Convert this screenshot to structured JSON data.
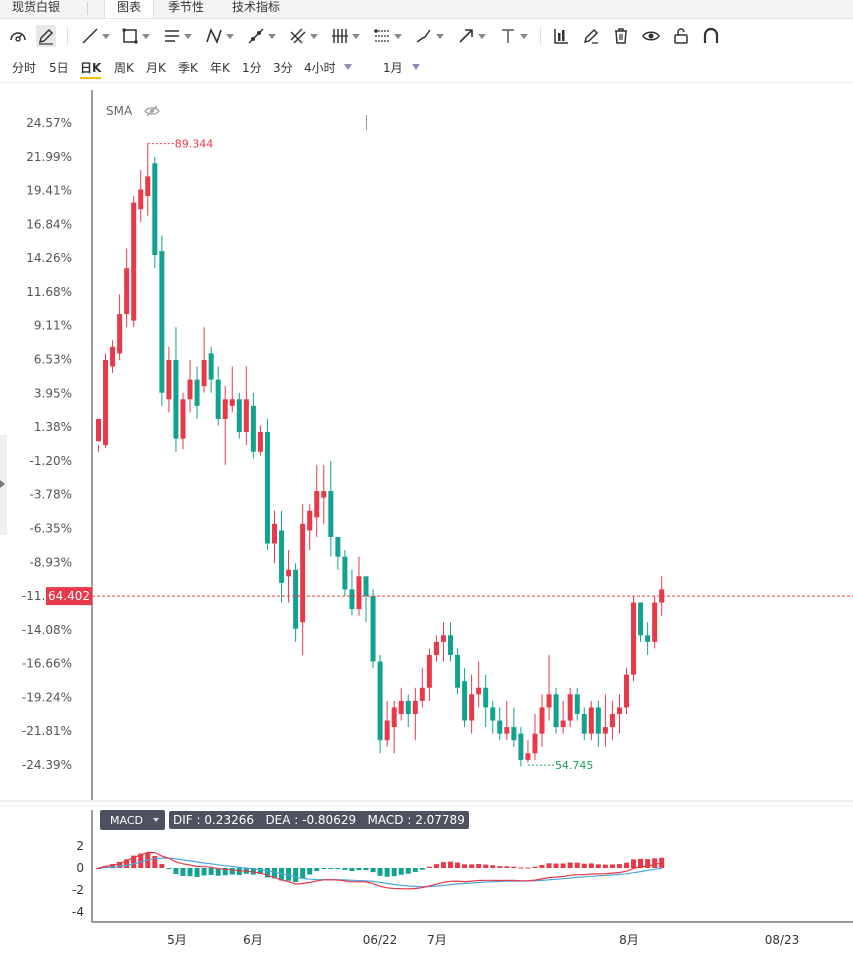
{
  "tabs": [
    {
      "label": "现货白银"
    },
    {
      "label": "图表"
    },
    {
      "label": "季节性"
    },
    {
      "label": "技术指标"
    }
  ],
  "toolbar": {
    "tools": [
      "speedometer-icon",
      "pencil-icon",
      "line-icon",
      "rectangle-icon",
      "parallel-lines-icon",
      "pattern-icon",
      "ray-icon",
      "fork-icon",
      "vertical-lines-icon",
      "fib-icon",
      "brush-icon",
      "arrow-icon",
      "text-icon",
      "measure-icon",
      "edit-icon",
      "trash-icon",
      "eye-icon",
      "lock-icon",
      "magnet-icon"
    ]
  },
  "periods": {
    "items": [
      "分时",
      "5日",
      "日K",
      "周K",
      "月K",
      "季K",
      "年K",
      "1分",
      "3分",
      "4小时"
    ],
    "active": "日K",
    "range": "1月"
  },
  "indicator": {
    "label": "SMA"
  },
  "colors": {
    "up": "#e8394a",
    "down": "#12a38f",
    "dif": "#e8394a",
    "dea": "#4aa8e0",
    "price_line": "#e8394a",
    "low_label": "#1f9e57"
  },
  "chart_data": {
    "type": "candlestick",
    "yaxis": {
      "labels": [
        "24.57%",
        "21.99%",
        "19.41%",
        "16.84%",
        "14.26%",
        "11.68%",
        "9.11%",
        "6.53%",
        "3.95%",
        "1.38%",
        "-1.20%",
        "-3.78%",
        "-6.35%",
        "-8.93%",
        "-11.51%",
        "-14.08%",
        "-16.66%",
        "-19.24%",
        "-21.81%",
        "-24.39%"
      ],
      "range": [
        -25.0,
        25.0
      ]
    },
    "current_price": "64.402",
    "current_pct": -11.51,
    "high_marker": "89.344",
    "high_pct": 23.0,
    "low_marker": "54.745",
    "low_pct": -24.4,
    "candles": [
      [
        0.3,
        2.0,
        0.0,
        -0.5
      ],
      [
        0.0,
        6.5,
        7.0,
        -0.2
      ],
      [
        6.0,
        7.5,
        8.0,
        5.5
      ],
      [
        7.0,
        10.0,
        11.5,
        6.5
      ],
      [
        10.0,
        13.5,
        15.0,
        9.0
      ],
      [
        9.5,
        18.5,
        19.0,
        9.0
      ],
      [
        18.0,
        19.5,
        21.0,
        17.0
      ],
      [
        19.0,
        20.5,
        23.0,
        17.5
      ],
      [
        21.5,
        14.5,
        22.0,
        13.5
      ],
      [
        14.8,
        4.0,
        16.0,
        3.0
      ],
      [
        3.5,
        6.5,
        7.5,
        2.5
      ],
      [
        6.5,
        0.5,
        9.0,
        -0.5
      ],
      [
        0.5,
        3.5,
        4.0,
        -0.3
      ],
      [
        3.5,
        5.0,
        6.5,
        2.5
      ],
      [
        5.0,
        3.0,
        6.0,
        2.0
      ],
      [
        4.5,
        6.5,
        9.0,
        4.0
      ],
      [
        7.0,
        5.0,
        7.5,
        4.0
      ],
      [
        5.0,
        2.0,
        6.0,
        1.5
      ],
      [
        2.0,
        3.5,
        4.5,
        -1.5
      ],
      [
        3.0,
        3.5,
        6.0,
        2.5
      ],
      [
        3.5,
        1.0,
        4.0,
        0.5
      ],
      [
        1.0,
        3.5,
        6.0,
        0.0
      ],
      [
        3.0,
        -0.5,
        4.0,
        -1.0
      ],
      [
        -0.5,
        1.0,
        1.5,
        -0.8
      ],
      [
        1.0,
        -7.5,
        2.0,
        -8.0
      ],
      [
        -7.5,
        -6.0,
        -5.0,
        -9.0
      ],
      [
        -6.5,
        -10.5,
        -5.0,
        -12.0
      ],
      [
        -10.0,
        -9.5,
        -8.0,
        -12.0
      ],
      [
        -9.5,
        -14.0,
        -9.0,
        -15.0
      ],
      [
        -13.5,
        -6.0,
        -4.5,
        -16.0
      ],
      [
        -6.5,
        -5.0,
        -4.5,
        -8.0
      ],
      [
        -5.5,
        -3.5,
        -1.5,
        -7.0
      ],
      [
        -4.0,
        -3.5,
        -1.5,
        -6.0
      ],
      [
        -3.5,
        -7.0,
        -1.2,
        -8.5
      ],
      [
        -7.0,
        -8.5,
        -7.0,
        -9.5
      ],
      [
        -8.5,
        -11.0,
        -8.0,
        -11.5
      ],
      [
        -11.0,
        -12.5,
        -9.5,
        -13.0
      ],
      [
        -12.5,
        -10.0,
        -8.5,
        -13.0
      ],
      [
        -10.0,
        -11.5,
        -10.5,
        -13.5
      ],
      [
        -11.5,
        -16.5,
        -11.0,
        -17.0
      ],
      [
        -16.5,
        -22.5,
        -16.0,
        -23.5
      ],
      [
        -22.5,
        -21.0,
        -19.5,
        -23.0
      ],
      [
        -21.5,
        -20.0,
        -19.5,
        -23.5
      ],
      [
        -20.5,
        -19.5,
        -18.5,
        -21.0
      ],
      [
        -19.5,
        -20.5,
        -19.0,
        -21.5
      ],
      [
        -20.5,
        -19.5,
        -18.5,
        -22.5
      ],
      [
        -19.5,
        -18.5,
        -17.0,
        -20.0
      ],
      [
        -18.5,
        -16.0,
        -15.5,
        -19.5
      ],
      [
        -16.0,
        -15.0,
        -14.5,
        -16.5
      ],
      [
        -15.0,
        -14.5,
        -13.5,
        -16.5
      ],
      [
        -14.5,
        -16.0,
        -13.5,
        -16.5
      ],
      [
        -16.0,
        -18.5,
        -15.5,
        -19.0
      ],
      [
        -18.0,
        -21.0,
        -17.0,
        -21.5
      ],
      [
        -21.0,
        -19.0,
        -17.5,
        -22.0
      ],
      [
        -19.0,
        -18.5,
        -16.5,
        -20.0
      ],
      [
        -18.5,
        -20.0,
        -17.5,
        -21.5
      ],
      [
        -20.0,
        -21.0,
        -19.5,
        -22.0
      ],
      [
        -21.0,
        -22.0,
        -20.0,
        -22.5
      ],
      [
        -22.0,
        -21.5,
        -19.5,
        -22.5
      ],
      [
        -21.5,
        -22.5,
        -20.0,
        -23.0
      ],
      [
        -22.0,
        -24.0,
        -21.5,
        -24.5
      ],
      [
        -24.0,
        -23.5,
        -22.5,
        -24.2
      ],
      [
        -23.5,
        -22.0,
        -20.5,
        -24.0
      ],
      [
        -22.0,
        -20.0,
        -19.0,
        -23.0
      ],
      [
        -20.0,
        -19.0,
        -16.0,
        -21.0
      ],
      [
        -19.0,
        -21.5,
        -18.5,
        -22.0
      ],
      [
        -21.5,
        -21.0,
        -19.5,
        -22.0
      ],
      [
        -21.0,
        -19.0,
        -18.5,
        -21.5
      ],
      [
        -19.0,
        -20.5,
        -18.5,
        -21.0
      ],
      [
        -20.5,
        -22.0,
        -20.0,
        -22.5
      ],
      [
        -22.0,
        -20.0,
        -19.5,
        -22.5
      ],
      [
        -20.0,
        -22.0,
        -19.5,
        -23.0
      ],
      [
        -22.0,
        -21.5,
        -19.0,
        -23.0
      ],
      [
        -21.5,
        -20.5,
        -19.5,
        -22.5
      ],
      [
        -20.5,
        -20.0,
        -19.0,
        -22.0
      ],
      [
        -20.0,
        -17.5,
        -17.0,
        -20.5
      ],
      [
        -17.5,
        -12.0,
        -11.5,
        -18.0
      ],
      [
        -12.0,
        -14.5,
        -12.0,
        -15.0
      ],
      [
        -14.5,
        -15.0,
        -13.5,
        -16.0
      ],
      [
        -15.0,
        -12.0,
        -11.5,
        -15.5
      ],
      [
        -12.0,
        -11.0,
        -10.0,
        -13.0
      ]
    ],
    "macd": {
      "yaxis": {
        "labels": [
          "2",
          "0",
          "-2",
          "-4"
        ],
        "range": [
          -4.5,
          3.0
        ]
      },
      "xaxis": {
        "labels": [
          "5月",
          "6月",
          "06/22",
          "7月",
          "8月",
          "08/23"
        ]
      },
      "dif": "0.23266",
      "dea": "-0.80629",
      "macd_value": "2.07789",
      "label": "MACD",
      "dif_label": "DIF",
      "dea_label": "DEA"
    }
  }
}
